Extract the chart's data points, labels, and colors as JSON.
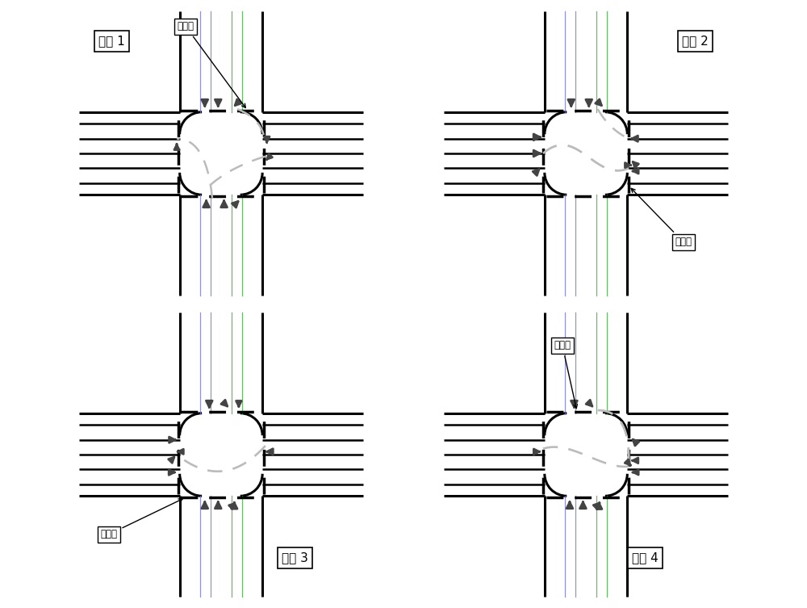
{
  "background_color": "#ffffff",
  "line_color": "#000000",
  "dashed_flow_color": "#bbbbbb",
  "arrow_color": "#444444",
  "lane_mark_color": "#888888",
  "colored_lane_color1": "#7777cc",
  "colored_lane_color2": "#44aa44",
  "figsize": [
    10.0,
    7.53
  ],
  "dpi": 100,
  "phase_labels": [
    "相位 1",
    "相位 2",
    "相位 3",
    "相位 4"
  ],
  "stopline_label": "停车线"
}
